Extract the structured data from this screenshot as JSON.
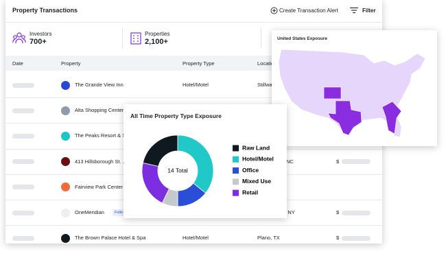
{
  "header": {
    "title": "Property Transactions",
    "create_alert": "Create Transaction Alert",
    "filter": "Filter"
  },
  "stats": [
    {
      "label": "Investors",
      "value": "700+"
    },
    {
      "label": "Properties",
      "value": "2,100+"
    }
  ],
  "table": {
    "columns": [
      "Date",
      "Property",
      "Property Type",
      "Location"
    ],
    "rows": [
      {
        "name": "The Grande View Inn",
        "color": "#2748d8",
        "type": "Hotel/Motel",
        "location": "Stillwa"
      },
      {
        "name": "Alta Shopping Center",
        "color": "#8d9ca8"
      },
      {
        "name": "The Peaks Resort & S",
        "color": "#1cc6c6"
      },
      {
        "name": "413 Hillsborough St. ...",
        "color": "#6a0e14",
        "location": "NC",
        "price": "$"
      },
      {
        "name": "Fairview Park Center",
        "color": "#f26a35"
      },
      {
        "name": "OneMeridian",
        "color": "#eeeeee",
        "tag": "Follo",
        "location": "y, NY",
        "price": "$"
      },
      {
        "name": "The Brown Palace Hotel & Spa",
        "color": "#0f1a20",
        "type": "Hotel/Motel",
        "location": "Plano, TX",
        "price": "$"
      }
    ]
  },
  "donut_card": {
    "chart_data": {
      "type": "pie",
      "title": "All Time Property Type Exposure",
      "center_label": "14 Total",
      "categories": [
        "Raw Land",
        "Hotel/Motel",
        "Office",
        "Mixed Use",
        "Retail"
      ],
      "values": [
        3,
        5,
        2,
        1,
        3
      ],
      "colors": [
        "#0f1a20",
        "#21c8c8",
        "#2a4fd6",
        "#c5c9cc",
        "#7c2ee0"
      ]
    }
  },
  "map_card": {
    "title": "United States Exposure"
  }
}
